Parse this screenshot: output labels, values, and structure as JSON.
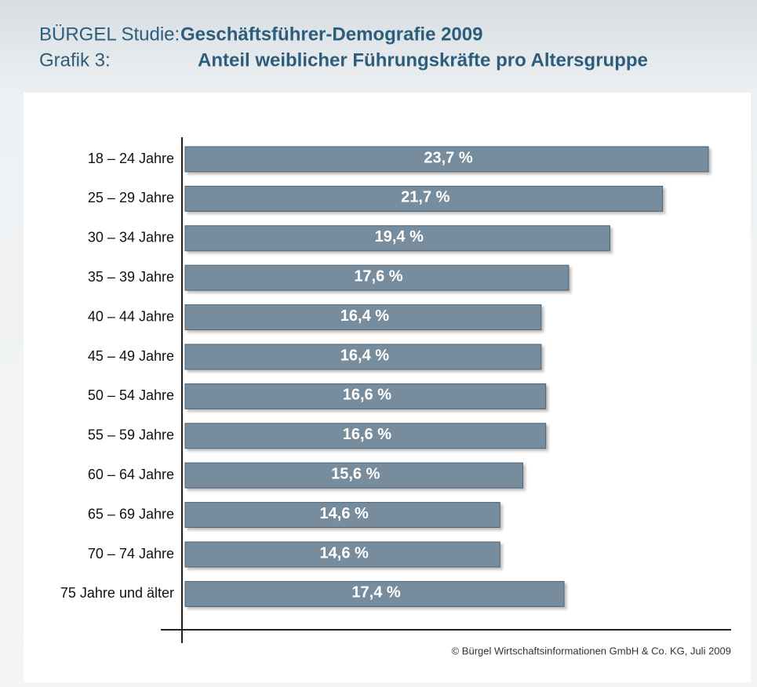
{
  "chart_data": {
    "type": "barh",
    "title_prefix": "BÜRGEL Studie:",
    "title": "Geschäftsführer-Demografie 2009",
    "subtitle_prefix": "Grafik 3:",
    "subtitle": "Anteil weiblicher Führungskräfte pro Altersgruppe",
    "categories": [
      "18 – 24 Jahre",
      "25 – 29 Jahre",
      "30 – 34 Jahre",
      "35 – 39 Jahre",
      "40 – 44 Jahre",
      "45 – 49 Jahre",
      "50 – 54 Jahre",
      "55 – 59  Jahre",
      "60 – 64  Jahre",
      "65 – 69 Jahre",
      "70 – 74 Jahre",
      "75 Jahre und älter"
    ],
    "values": [
      23.7,
      21.7,
      19.4,
      17.6,
      16.4,
      16.4,
      16.6,
      16.6,
      15.6,
      14.6,
      14.6,
      17.4
    ],
    "value_labels": [
      "23,7 %",
      "21,7 %",
      "19,4 %",
      "17,6 %",
      "16,4 %",
      "16,4 %",
      "16,6 %",
      "16,6 %",
      "15,6 %",
      "14,6 %",
      "14,6 %",
      "17,4 %"
    ],
    "color": "#778c9c",
    "source": "© Bürgel Wirtschaftsinformationen GmbH & Co. KG, Juli 2009"
  }
}
